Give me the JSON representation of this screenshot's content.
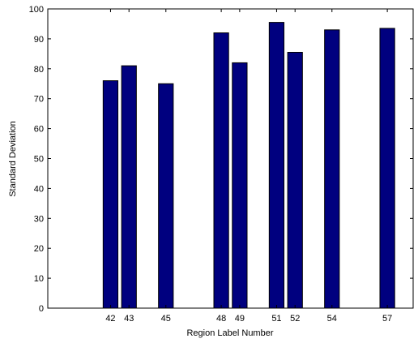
{
  "chart_data": {
    "type": "bar",
    "title": "",
    "xlabel": "Region Label Number",
    "ylabel": "Standard Deviation",
    "xlim": [
      38.6,
      58.4
    ],
    "ylim": [
      0,
      100
    ],
    "yticks": [
      0,
      10,
      20,
      30,
      40,
      50,
      60,
      70,
      80,
      90,
      100
    ],
    "bar_width_units": 0.8,
    "categories": [
      42,
      43,
      45,
      48,
      49,
      51,
      52,
      54,
      57
    ],
    "values": [
      76,
      81,
      75,
      92,
      82,
      95.5,
      85.5,
      93,
      93.5
    ],
    "bar_color": "#00007f",
    "grid": false,
    "legend": "none"
  }
}
